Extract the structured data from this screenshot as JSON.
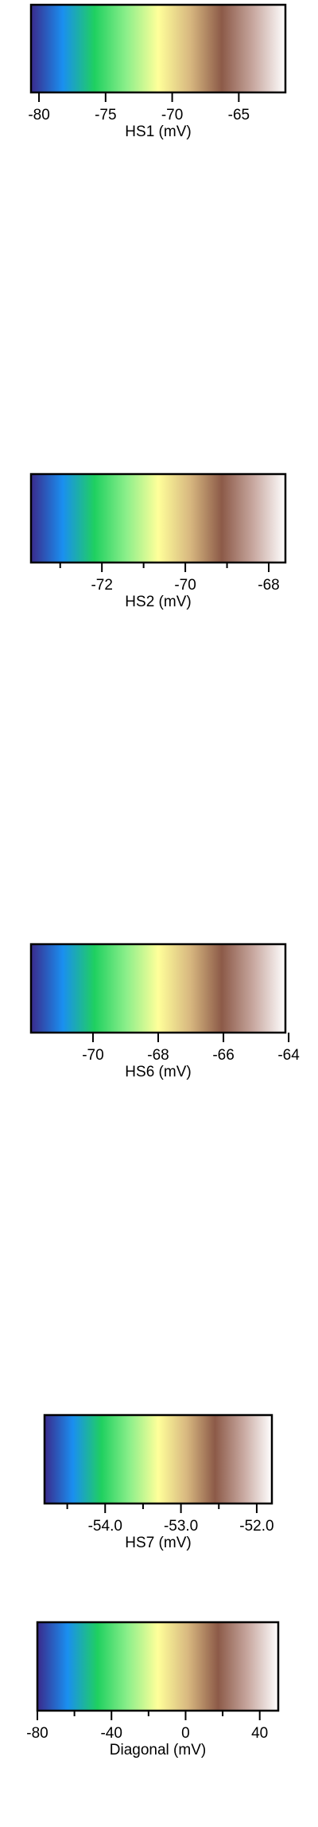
{
  "chart_data": [
    {
      "type": "heatmap",
      "colormap_stops": [
        "#3a2a8c",
        "#1a8ff0",
        "#1fd060",
        "#8cef8a",
        "#ffff9a",
        "#d8b880",
        "#8c5a48",
        "#c8a8a0",
        "#ffffff"
      ],
      "title": "",
      "xlabel": "HS1 (mV)",
      "xlim": [
        -80.6,
        -61.5
      ],
      "major_ticks": [
        -80,
        -75,
        -70,
        -65
      ],
      "tick_labels": [
        "-80",
        "-75",
        "-70",
        "-65"
      ],
      "minor_ticks": [],
      "grid": false
    },
    {
      "type": "heatmap",
      "colormap_stops": [
        "#3a2a8c",
        "#1a8ff0",
        "#1fd060",
        "#8cef8a",
        "#ffff9a",
        "#d8b880",
        "#8c5a48",
        "#c8a8a0",
        "#ffffff"
      ],
      "title": "",
      "xlabel": "HS2 (mV)",
      "xlim": [
        -73.7,
        -67.6
      ],
      "major_ticks": [
        -72,
        -70,
        -68
      ],
      "tick_labels": [
        "-72",
        "-70",
        "-68"
      ],
      "minor_ticks": [
        -73,
        -71,
        -69
      ],
      "grid": false
    },
    {
      "type": "heatmap",
      "colormap_stops": [
        "#3a2a8c",
        "#1a8ff0",
        "#1fd060",
        "#8cef8a",
        "#ffff9a",
        "#d8b880",
        "#8c5a48",
        "#c8a8a0",
        "#ffffff"
      ],
      "title": "",
      "xlabel": "HS6 (mV)",
      "xlim": [
        -71.9,
        -64.1
      ],
      "major_ticks": [
        -70,
        -68,
        -66,
        -64
      ],
      "tick_labels": [
        "-70",
        "-68",
        "-66",
        "-64"
      ],
      "minor_ticks": [],
      "grid": false
    },
    {
      "type": "heatmap",
      "colormap_stops": [
        "#3a2a8c",
        "#1a8ff0",
        "#1fd060",
        "#8cef8a",
        "#ffff9a",
        "#d8b880",
        "#8c5a48",
        "#c8a8a0",
        "#ffffff"
      ],
      "title": "",
      "xlabel": "HS7 (mV)",
      "xlim": [
        -54.8,
        -51.8
      ],
      "major_ticks": [
        -54.0,
        -53.0,
        -52.0
      ],
      "tick_labels": [
        "-54.0",
        "-53.0",
        "-52.0"
      ],
      "minor_ticks": [
        -54.5,
        -53.5,
        -52.5
      ],
      "grid": false
    },
    {
      "type": "heatmap",
      "colormap_stops": [
        "#3a2a8c",
        "#1a8ff0",
        "#1fd060",
        "#8cef8a",
        "#ffff9a",
        "#d8b880",
        "#8c5a48",
        "#c8a8a0",
        "#ffffff"
      ],
      "title": "",
      "xlabel": "Diagonal (mV)",
      "xlim": [
        -80,
        50
      ],
      "major_ticks": [
        -80,
        -40,
        0,
        40
      ],
      "tick_labels": [
        "-80",
        "-40",
        "0",
        "40"
      ],
      "minor_ticks": [
        -60,
        -20,
        20
      ],
      "grid": false
    }
  ]
}
